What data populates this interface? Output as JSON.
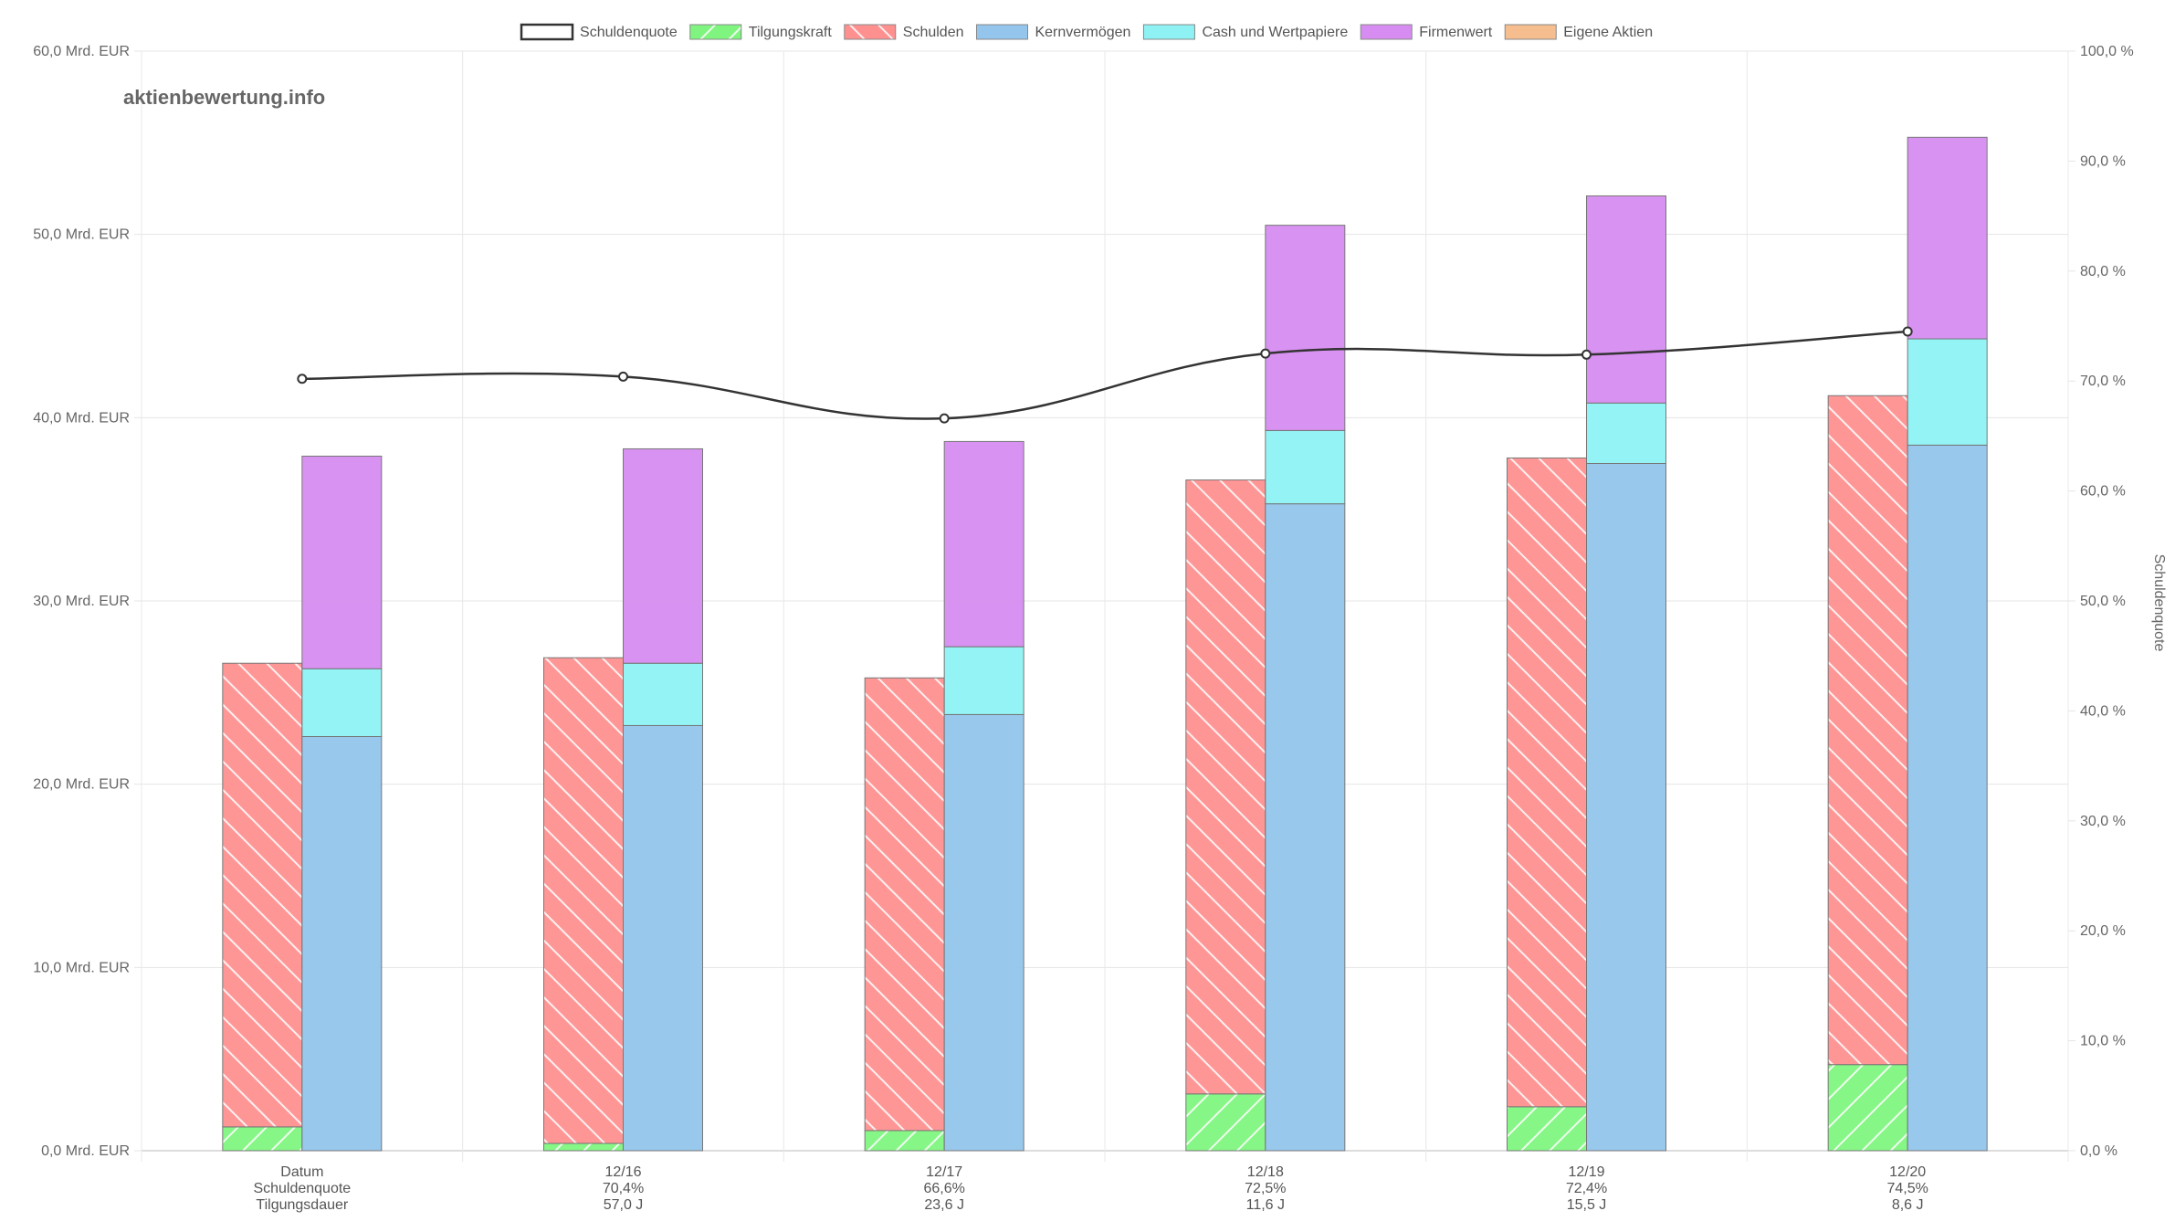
{
  "watermark": "aktienbewertung.info",
  "chart_data": {
    "type": "bar",
    "categories": [
      "",
      "12/16",
      "12/17",
      "12/18",
      "12/19",
      "12/20"
    ],
    "category_rows": [
      [
        "Datum",
        "Schuldenquote",
        "Tilgungsdauer"
      ],
      [
        "12/16",
        "70,4%",
        "57,0 J"
      ],
      [
        "12/17",
        "66,6%",
        "23,6 J"
      ],
      [
        "12/18",
        "72,5%",
        "11,6 J"
      ],
      [
        "12/19",
        "72,4%",
        "15,5 J"
      ],
      [
        "12/20",
        "74,5%",
        "8,6 J"
      ]
    ],
    "y_left": {
      "ylim": [
        0,
        60
      ],
      "ticks": [
        0,
        10,
        20,
        30,
        40,
        50,
        60
      ],
      "tick_labels": [
        "0,0 Mrd. EUR",
        "10,0 Mrd. EUR",
        "20,0 Mrd. EUR",
        "30,0 Mrd. EUR",
        "40,0 Mrd. EUR",
        "50,0 Mrd. EUR",
        "60,0 Mrd. EUR"
      ]
    },
    "y_right": {
      "ylim": [
        0,
        100
      ],
      "ticks": [
        0,
        10,
        20,
        30,
        40,
        50,
        60,
        70,
        80,
        90,
        100
      ],
      "tick_labels": [
        "0,0 %",
        "10,0 %",
        "20,0 %",
        "30,0 %",
        "40,0 %",
        "50,0 %",
        "60,0 %",
        "70,0 %",
        "80,0 %",
        "90,0 %",
        "100,0 %"
      ],
      "title": "Schuldenquote"
    },
    "legend_position": "top-center",
    "grid": true,
    "series": [
      {
        "name": "Schuldenquote",
        "kind": "line",
        "axis": "right",
        "color": "#333333",
        "values": [
          70.2,
          70.4,
          66.6,
          72.5,
          72.4,
          74.5
        ]
      },
      {
        "name": "Tilgungskraft",
        "kind": "bar",
        "stack": "left",
        "color": "#7ff57f",
        "pattern": true,
        "values": [
          1.3,
          0.4,
          1.1,
          3.1,
          2.4,
          4.7
        ]
      },
      {
        "name": "Schulden",
        "kind": "bar",
        "stack": "left",
        "color": "#ff9090",
        "pattern": true,
        "values": [
          25.3,
          26.5,
          24.7,
          33.5,
          35.4,
          36.5
        ]
      },
      {
        "name": "Kernvermögen",
        "kind": "bar",
        "stack": "right",
        "color": "#94c5ec",
        "values": [
          22.6,
          23.2,
          23.8,
          35.3,
          37.5,
          38.5
        ]
      },
      {
        "name": "Cash und Wertpapiere",
        "kind": "bar",
        "stack": "right",
        "color": "#8ef2f4",
        "values": [
          3.7,
          3.4,
          3.7,
          4.0,
          3.3,
          5.8
        ]
      },
      {
        "name": "Firmenwert",
        "kind": "bar",
        "stack": "right",
        "color": "#d68cf0",
        "values": [
          11.6,
          11.7,
          11.2,
          11.2,
          11.3,
          11.0
        ]
      },
      {
        "name": "Eigene Aktien",
        "kind": "bar",
        "stack": "right",
        "color": "#f6bd8e",
        "values": [
          0,
          0,
          0,
          0,
          0,
          0
        ]
      }
    ]
  }
}
